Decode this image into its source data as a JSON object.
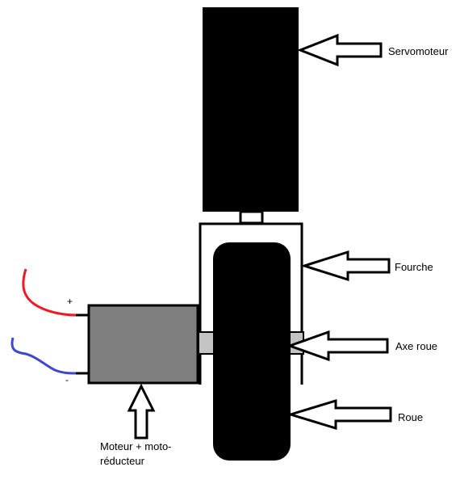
{
  "labels": {
    "servomoteur": "Servomoteur",
    "fourche": "Fourche",
    "axe_roue": "Axe roue",
    "roue": "Roue",
    "moteur_line1": "Moteur + moto-",
    "moteur_line2": "réducteur"
  },
  "signs": {
    "plus": "+",
    "minus": "-"
  },
  "colors": {
    "servo_fill": "#000000",
    "wheel_fill": "#000000",
    "motor_fill": "#7f7f7f",
    "axle_fill": "#c3c3c3",
    "wire_positive": "#ed1c24",
    "wire_negative": "#3f48cc",
    "outline": "#000000"
  }
}
